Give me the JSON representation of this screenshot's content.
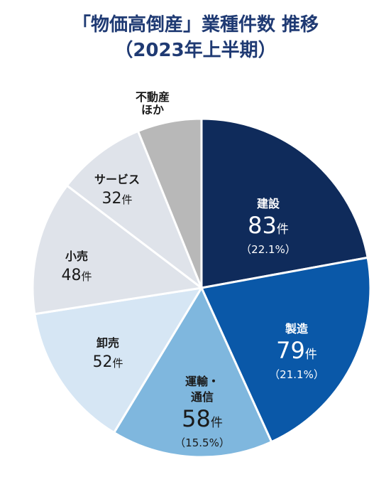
{
  "title_line1": "「物価高倒産」業種件数 推移",
  "title_line2": "（2023年上半期）",
  "chart_data": {
    "type": "pie",
    "title": "「物価高倒産」業種件数 推移（2023年上半期）",
    "unit": "件",
    "slices": [
      {
        "name": "建設",
        "value": 83,
        "percent": "（22.1%）",
        "color": "#0f2b5b",
        "text_color": "#ffffff"
      },
      {
        "name": "製造",
        "value": 79,
        "percent": "（21.1%）",
        "color": "#0a58a8",
        "text_color": "#ffffff"
      },
      {
        "name": "運輸・通信",
        "name_lines": [
          "運輸・",
          "通信"
        ],
        "value": 58,
        "percent": "（15.5%）",
        "color": "#7fb7de",
        "text_color": "#1a1a1a"
      },
      {
        "name": "卸売",
        "value": 52,
        "percent": "",
        "color": "#d6e6f4",
        "text_color": "#1a1a1a"
      },
      {
        "name": "小売",
        "value": 48,
        "percent": "",
        "color": "#dfe3ea",
        "text_color": "#1a1a1a"
      },
      {
        "name": "サービス",
        "value": 32,
        "percent": "",
        "color": "#dfe3ea",
        "text_color": "#1a1a1a"
      },
      {
        "name": "不動産ほか",
        "name_lines": [
          "不動産",
          "ほか"
        ],
        "value": 23,
        "percent": "",
        "color": "#b8b8b8",
        "text_color": "#1a1a1a"
      }
    ]
  }
}
